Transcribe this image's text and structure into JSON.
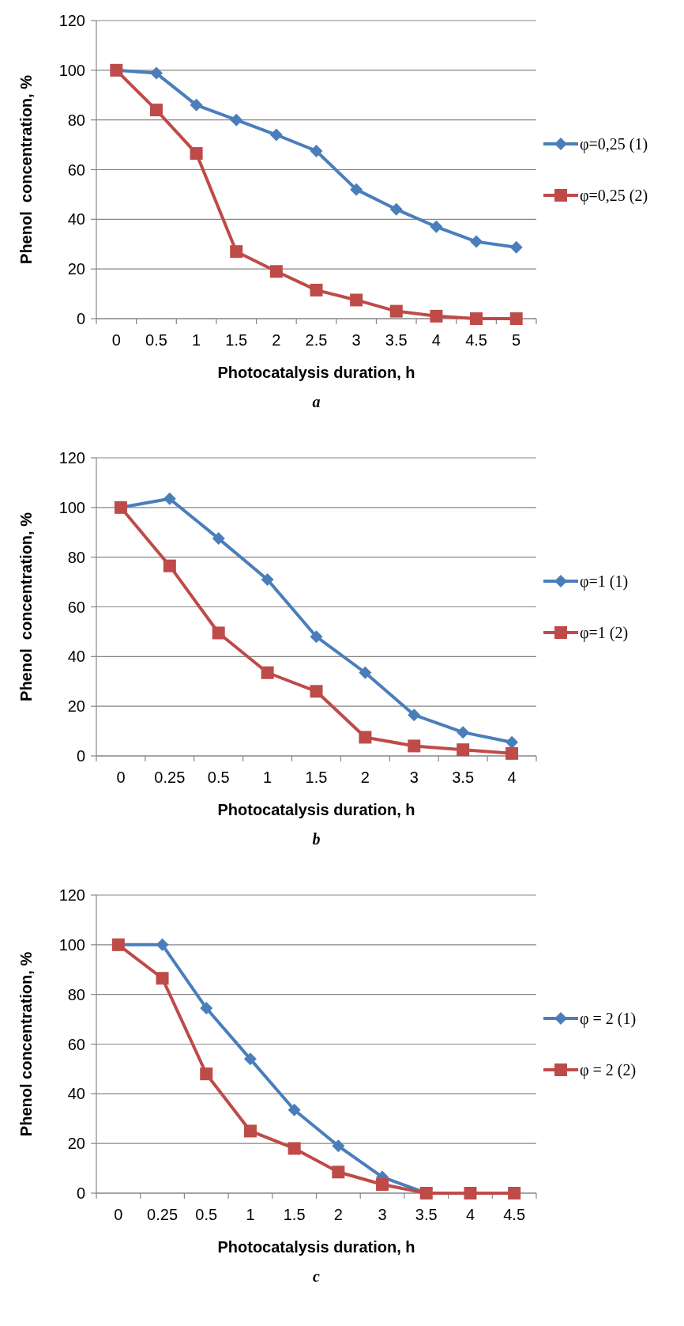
{
  "chart_data": [
    {
      "type": "line",
      "xlabel": "Photocatalysis duration, h",
      "ylabel": "Phenol  concentration, %",
      "categories": [
        "0",
        "0.5",
        "1",
        "1.5",
        "2",
        "2.5",
        "3",
        "3.5",
        "4",
        "4.5",
        "5"
      ],
      "ylim": [
        0,
        120
      ],
      "yticks": [
        0,
        20,
        40,
        60,
        80,
        100,
        120
      ],
      "grid": "y",
      "legend": "right",
      "annotations": [
        "a"
      ],
      "series": [
        {
          "name": "φ=0,25 (1)",
          "color": "#4a7ebb",
          "marker": "diamond",
          "values": [
            100,
            98.8,
            86,
            80,
            74,
            67.5,
            52,
            44,
            37,
            31,
            28.7
          ]
        },
        {
          "name": "φ=0,25 (2)",
          "color": "#be4b48",
          "marker": "square",
          "values": [
            100,
            84,
            66.5,
            27,
            19,
            11.5,
            7.5,
            3,
            1,
            0,
            0
          ]
        }
      ]
    },
    {
      "type": "line",
      "xlabel": "Photocatalysis duration, h",
      "ylabel": "Phenol  concentration, %",
      "categories": [
        "0",
        "0.25",
        "0.5",
        "1",
        "1.5",
        "2",
        "3",
        "3.5",
        "4"
      ],
      "ylim": [
        0,
        120
      ],
      "yticks": [
        0,
        20,
        40,
        60,
        80,
        100,
        120
      ],
      "grid": "y",
      "legend": "right",
      "annotations": [
        "b"
      ],
      "series": [
        {
          "name": "φ=1 (1)",
          "color": "#4a7ebb",
          "marker": "diamond",
          "values": [
            100,
            103.5,
            87.5,
            71,
            48,
            33.5,
            16.5,
            9.5,
            5.5
          ]
        },
        {
          "name": "φ=1 (2)",
          "color": "#be4b48",
          "marker": "square",
          "values": [
            100,
            76.5,
            49.5,
            33.5,
            26,
            7.5,
            4,
            2.5,
            1
          ]
        }
      ]
    },
    {
      "type": "line",
      "xlabel": "Photocatalysis duration, h",
      "ylabel": "Phenol concentration, %",
      "categories": [
        "0",
        "0.25",
        "0.5",
        "1",
        "1.5",
        "2",
        "3",
        "3.5",
        "4",
        "4.5"
      ],
      "ylim": [
        0,
        120
      ],
      "yticks": [
        0,
        20,
        40,
        60,
        80,
        100,
        120
      ],
      "grid": "y",
      "legend": "right",
      "annotations": [
        "c"
      ],
      "series": [
        {
          "name": "φ = 2 (1)",
          "color": "#4a7ebb",
          "marker": "diamond",
          "values": [
            100,
            100,
            74.5,
            54,
            33.5,
            19,
            6.5,
            0,
            null,
            null
          ]
        },
        {
          "name": "φ = 2 (2)",
          "color": "#be4b48",
          "marker": "square",
          "values": [
            100,
            86.5,
            48,
            25,
            18,
            8.5,
            3.5,
            0,
            0,
            0
          ]
        }
      ]
    }
  ]
}
